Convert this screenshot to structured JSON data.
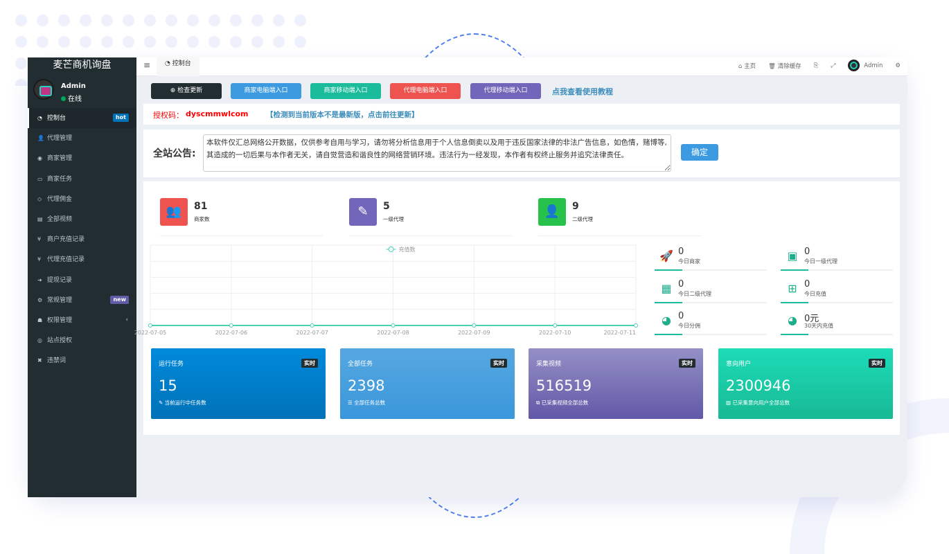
{
  "app": {
    "title": "麦芒商机询盘"
  },
  "user": {
    "name": "Admin",
    "status": "在线"
  },
  "sidebar": {
    "items": [
      {
        "label": "控制台",
        "icon": "dashboard-icon",
        "badge": "hot",
        "badge_color": "#0073b7"
      },
      {
        "label": "代理管理",
        "icon": "user-plus-icon"
      },
      {
        "label": "商家管理",
        "icon": "eye-icon"
      },
      {
        "label": "商家任务",
        "icon": "keyboard-icon"
      },
      {
        "label": "代理佣金",
        "icon": "diamond-icon"
      },
      {
        "label": "全部视频",
        "icon": "file-video-icon"
      },
      {
        "label": "商户充值记录",
        "icon": "yen-icon"
      },
      {
        "label": "代理充值记录",
        "icon": "yen-icon"
      },
      {
        "label": "提现记录",
        "icon": "sign-in-icon"
      },
      {
        "label": "常规管理",
        "icon": "cogs-icon",
        "badge": "new",
        "badge_color": "#605ca8"
      },
      {
        "label": "权限管理",
        "icon": "group-icon",
        "chevron": "‹"
      },
      {
        "label": "站点授权",
        "icon": "globe-icon"
      },
      {
        "label": "违禁词",
        "icon": "times-icon"
      }
    ]
  },
  "topbar": {
    "tab": "控制台",
    "home": "主页",
    "clear_cache": "清除缓存",
    "admin": "Admin"
  },
  "toolbar": {
    "buttons": [
      {
        "label": "检查更新",
        "color": "#222d32"
      },
      {
        "label": "商家电脑端入口",
        "color": "#3c9ae0"
      },
      {
        "label": "商家移动端入口",
        "color": "#1abc9c"
      },
      {
        "label": "代理电脑端入口",
        "color": "#ef5350"
      },
      {
        "label": "代理移动端入口",
        "color": "#7266ba"
      }
    ],
    "tutorial_link": "点我查看使用教程"
  },
  "license": {
    "label": "授权码：",
    "code": "dyscmmwlcom",
    "update_notice": "【检测到当前版本不是最新版，点击前往更新】"
  },
  "notice": {
    "label": "全站公告:",
    "text": "本软件仅汇总网络公开数据，仅供参考自用与学习，请勿将分析信息用于个人信息倒卖以及用于违反国家法律的非法广告信息，如色情，赌博等, 其造成的一切后果与本作者无关，请自觉营造和谐良性的网络营销环境。违法行为一经发现，本作者有权终止服务并追究法律责任。",
    "confirm": "确定"
  },
  "stats": [
    {
      "value": "81",
      "label": "商家数",
      "color": "#ef5350",
      "icon": "users-icon"
    },
    {
      "value": "5",
      "label": "一级代理",
      "color": "#7266ba",
      "icon": "magic-icon"
    },
    {
      "value": "9",
      "label": "二级代理",
      "color": "#27c24c",
      "icon": "user-icon"
    }
  ],
  "mini_stats": [
    {
      "value": "0",
      "label": "今日商家",
      "icon": "rocket-icon"
    },
    {
      "value": "0",
      "label": "今日一级代理",
      "icon": "id-card-icon"
    },
    {
      "value": "0",
      "label": "今日二级代理",
      "icon": "calendar-icon"
    },
    {
      "value": "0",
      "label": "今日充值",
      "icon": "calendar-plus-icon"
    },
    {
      "value": "0",
      "label": "今日分佣",
      "icon": "user-circle-icon"
    },
    {
      "value": "0元",
      "label": "30天内充值",
      "icon": "user-circle-icon"
    }
  ],
  "chart_data": {
    "type": "line",
    "categories": [
      "2022-07-05",
      "2022-07-06",
      "2022-07-07",
      "2022-07-08",
      "2022-07-09",
      "2022-07-10",
      "2022-07-11"
    ],
    "series": [
      {
        "name": "充值数",
        "values": [
          0,
          0,
          0,
          0,
          0,
          0,
          0
        ],
        "color": "#48d1b5"
      }
    ],
    "legend": "top-center",
    "grid": true
  },
  "cards": [
    {
      "title": "运行任务",
      "badge": "实时",
      "value": "15",
      "sub": "当前运行中任务数",
      "gradient": [
        "#0089db",
        "#0072b8"
      ]
    },
    {
      "title": "全部任务",
      "badge": "实时",
      "value": "2398",
      "sub": "全部任务总数",
      "gradient": [
        "#56a7e0",
        "#3a97db"
      ]
    },
    {
      "title": "采集视频",
      "badge": "实时",
      "value": "516519",
      "sub": "已采集视频全部总数",
      "gradient": [
        "#9490c6",
        "#6158a7"
      ]
    },
    {
      "title": "意向用户",
      "badge": "实时",
      "value": "2300946",
      "sub": "已采集意向用户全部总数",
      "gradient": [
        "#1ddcb8",
        "#17b994"
      ]
    }
  ]
}
